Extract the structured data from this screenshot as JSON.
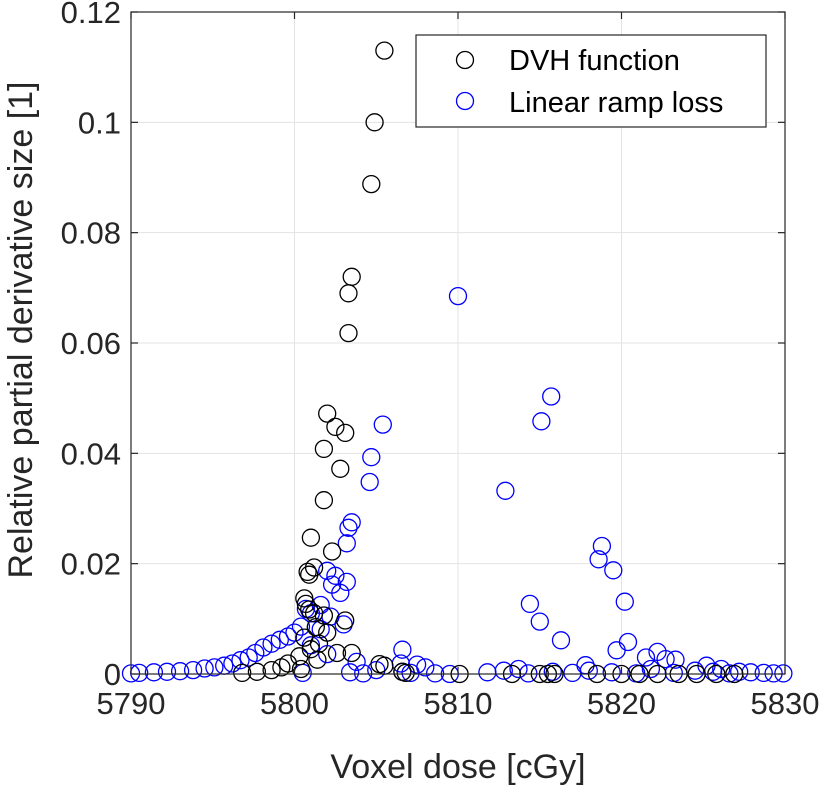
{
  "chart_data": {
    "type": "scatter",
    "title": "",
    "xlabel": "Voxel dose [cGy]",
    "ylabel": "Relative partial derivative size [1]",
    "xlim": [
      5790,
      5830
    ],
    "ylim": [
      0,
      0.12
    ],
    "xticks": [
      5790,
      5800,
      5810,
      5820,
      5830
    ],
    "yticks": [
      0,
      0.02,
      0.04,
      0.06,
      0.08,
      0.1,
      0.12
    ],
    "xtick_labels": [
      "5790",
      "5800",
      "5810",
      "5820",
      "5830"
    ],
    "ytick_labels": [
      "0",
      "0.02",
      "0.04",
      "0.06",
      "0.08",
      "0.1",
      "0.12"
    ],
    "grid": true,
    "legend_position": "top-right",
    "marker": "open-circle",
    "series": [
      {
        "name": "DVH function",
        "color": "#000000",
        "points": [
          [
            5805.5,
            0.113
          ],
          [
            5804.9,
            0.1
          ],
          [
            5804.7,
            0.0888
          ],
          [
            5803.5,
            0.072
          ],
          [
            5803.3,
            0.069
          ],
          [
            5803.3,
            0.0618
          ],
          [
            5802.0,
            0.0472
          ],
          [
            5802.5,
            0.0448
          ],
          [
            5803.1,
            0.0437
          ],
          [
            5801.8,
            0.0408
          ],
          [
            5802.8,
            0.0372
          ],
          [
            5801.8,
            0.0315
          ],
          [
            5801.0,
            0.0247
          ],
          [
            5802.3,
            0.0222
          ],
          [
            5801.2,
            0.0193
          ],
          [
            5800.8,
            0.0185
          ],
          [
            5800.9,
            0.018
          ],
          [
            5800.6,
            0.0137
          ],
          [
            5800.7,
            0.0127
          ],
          [
            5800.9,
            0.0117
          ],
          [
            5801.2,
            0.011
          ],
          [
            5801.8,
            0.0106
          ],
          [
            5803.1,
            0.0097
          ],
          [
            5801.3,
            0.0085
          ],
          [
            5802.0,
            0.0075
          ],
          [
            5800.6,
            0.0066
          ],
          [
            5801.5,
            0.0055
          ],
          [
            5801.0,
            0.0045
          ],
          [
            5802.6,
            0.0038
          ],
          [
            5803.5,
            0.0038
          ],
          [
            5800.3,
            0.0032
          ],
          [
            5801.4,
            0.0026
          ],
          [
            5799.6,
            0.0019
          ],
          [
            5805.2,
            0.0018
          ],
          [
            5805.5,
            0.0015
          ],
          [
            5799.2,
            0.0012
          ],
          [
            5800.4,
            0.0009
          ],
          [
            5798.6,
            0.0007
          ],
          [
            5797.7,
            0.0004
          ],
          [
            5796.8,
            0.0002
          ],
          [
            5806.6,
            0.0004
          ],
          [
            5806.8,
            0.0002
          ],
          [
            5810.1,
            0.0
          ],
          [
            5813.3,
            0.0
          ],
          [
            5815.0,
            0.0
          ],
          [
            5815.5,
            0.0
          ],
          [
            5815.9,
            0.0
          ],
          [
            5818.5,
            0.0
          ],
          [
            5820.0,
            0.0
          ],
          [
            5821.1,
            0.0
          ],
          [
            5822.2,
            0.0
          ],
          [
            5823.5,
            0.0
          ],
          [
            5824.6,
            0.0
          ],
          [
            5825.8,
            0.0
          ],
          [
            5826.9,
            0.0
          ]
        ]
      },
      {
        "name": "Linear ramp loss",
        "color": "#0000ff",
        "points": [
          [
            5810.0,
            0.0685
          ],
          [
            5815.7,
            0.0503
          ],
          [
            5815.1,
            0.0458
          ],
          [
            5805.4,
            0.0452
          ],
          [
            5804.7,
            0.0393
          ],
          [
            5804.6,
            0.0348
          ],
          [
            5812.9,
            0.0332
          ],
          [
            5803.5,
            0.0275
          ],
          [
            5803.3,
            0.0265
          ],
          [
            5803.2,
            0.0237
          ],
          [
            5818.8,
            0.0232
          ],
          [
            5818.6,
            0.0208
          ],
          [
            5819.5,
            0.0188
          ],
          [
            5802.0,
            0.0187
          ],
          [
            5802.5,
            0.0178
          ],
          [
            5803.2,
            0.0167
          ],
          [
            5802.3,
            0.0162
          ],
          [
            5802.8,
            0.0147
          ],
          [
            5820.2,
            0.0131
          ],
          [
            5814.4,
            0.0127
          ],
          [
            5801.6,
            0.0125
          ],
          [
            5800.7,
            0.0118
          ],
          [
            5801.0,
            0.011
          ],
          [
            5802.2,
            0.0104
          ],
          [
            5815.0,
            0.0095
          ],
          [
            5803.0,
            0.009
          ],
          [
            5800.4,
            0.0086
          ],
          [
            5801.6,
            0.0081
          ],
          [
            5800.0,
            0.0075
          ],
          [
            5799.6,
            0.0068
          ],
          [
            5799.1,
            0.0062
          ],
          [
            5816.3,
            0.0061
          ],
          [
            5820.4,
            0.0058
          ],
          [
            5798.6,
            0.0055
          ],
          [
            5801.0,
            0.0052
          ],
          [
            5798.1,
            0.0048
          ],
          [
            5806.6,
            0.0044
          ],
          [
            5819.7,
            0.0043
          ],
          [
            5822.2,
            0.004
          ],
          [
            5797.6,
            0.0038
          ],
          [
            5802.0,
            0.0036
          ],
          [
            5797.2,
            0.003
          ],
          [
            5821.5,
            0.003
          ],
          [
            5822.7,
            0.0027
          ],
          [
            5796.7,
            0.0025
          ],
          [
            5823.3,
            0.0026
          ],
          [
            5803.8,
            0.0022
          ],
          [
            5796.2,
            0.0019
          ],
          [
            5806.5,
            0.0019
          ],
          [
            5807.5,
            0.0017
          ],
          [
            5795.7,
            0.0015
          ],
          [
            5817.8,
            0.0016
          ],
          [
            5825.2,
            0.0015
          ],
          [
            5795.1,
            0.0012
          ],
          [
            5808.0,
            0.0012
          ],
          [
            5794.5,
            0.001
          ],
          [
            5813.7,
            0.0009
          ],
          [
            5821.8,
            0.0009
          ],
          [
            5826.1,
            0.0009
          ],
          [
            5793.8,
            0.0007
          ],
          [
            5805.0,
            0.0007
          ],
          [
            5812.8,
            0.0006
          ],
          [
            5818.0,
            0.0006
          ],
          [
            5824.5,
            0.0006
          ],
          [
            5793.0,
            0.0005
          ],
          [
            5792.2,
            0.0004
          ],
          [
            5806.6,
            0.0004
          ],
          [
            5815.8,
            0.0004
          ],
          [
            5825.6,
            0.0004
          ],
          [
            5827.2,
            0.0004
          ],
          [
            5791.4,
            0.0003
          ],
          [
            5803.4,
            0.0003
          ],
          [
            5811.8,
            0.0003
          ],
          [
            5819.4,
            0.0003
          ],
          [
            5827.9,
            0.0003
          ],
          [
            5790.5,
            0.0002
          ],
          [
            5807.1,
            0.0002
          ],
          [
            5817.0,
            0.0002
          ],
          [
            5823.2,
            0.0002
          ],
          [
            5828.7,
            0.0002
          ],
          [
            5790.0,
            0.0001
          ],
          [
            5808.6,
            0.0001
          ],
          [
            5814.3,
            0.0001
          ],
          [
            5820.9,
            0.0001
          ],
          [
            5829.3,
            0.0001
          ],
          [
            5829.9,
            0.0001
          ],
          [
            5800.5,
            0.0002
          ],
          [
            5804.2,
            0.0001
          ],
          [
            5809.5,
            0.0
          ],
          [
            5826.6,
            0.0001
          ]
        ]
      }
    ]
  }
}
